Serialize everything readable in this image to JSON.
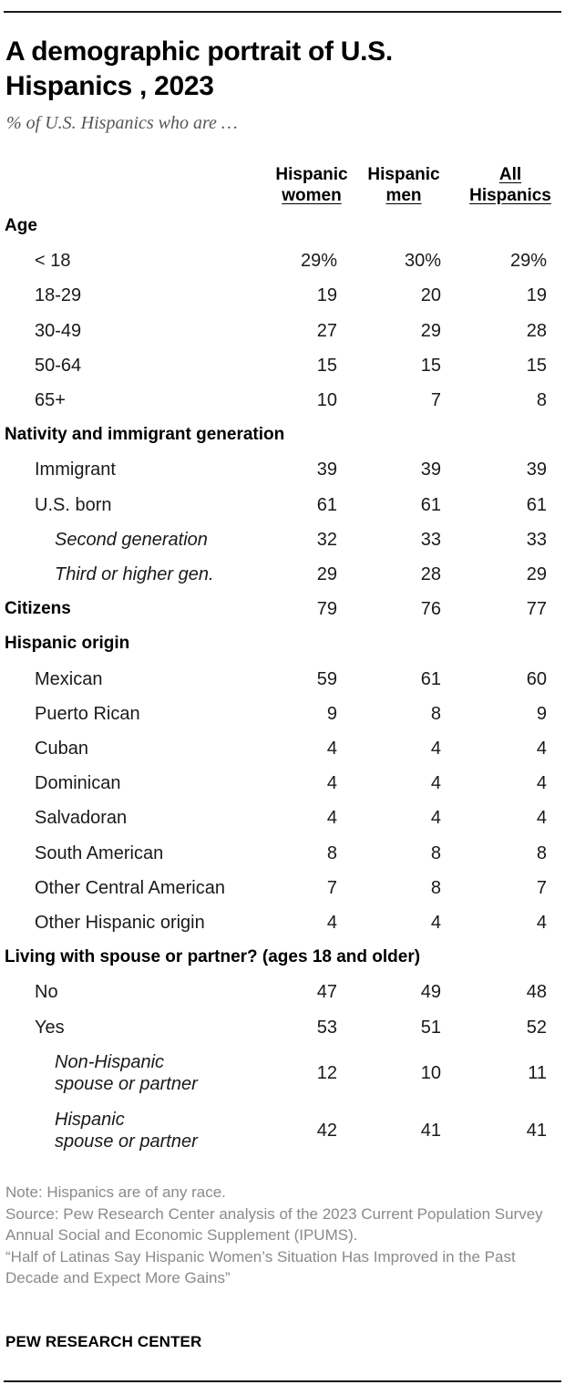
{
  "title": "A demographic portrait of  U.S.\nHispanics , 2023",
  "subtitle": "% of U.S. Hispanics who are …",
  "columns": [
    {
      "line1": "Hispanic",
      "line2": "women"
    },
    {
      "line1": "Hispanic",
      "line2": "men"
    },
    {
      "line1": "All",
      "line2": "Hispanics"
    }
  ],
  "chart_data": {
    "type": "table",
    "title": "A demographic portrait of  U.S. Hispanics , 2023",
    "subtitle": "% of U.S. Hispanics who are …",
    "columns": [
      "Hispanic women",
      "Hispanic men",
      "All Hispanics"
    ],
    "rows": [
      {
        "label": "Age",
        "kind": "section",
        "values": []
      },
      {
        "label": "< 18",
        "kind": "item",
        "values": [
          "29%",
          "30%",
          "29%"
        ]
      },
      {
        "label": "18-29",
        "kind": "item",
        "values": [
          "19",
          "20",
          "19"
        ]
      },
      {
        "label": "30-49",
        "kind": "item",
        "values": [
          "27",
          "29",
          "28"
        ]
      },
      {
        "label": "50-64",
        "kind": "item",
        "values": [
          "15",
          "15",
          "15"
        ]
      },
      {
        "label": "65+",
        "kind": "item",
        "values": [
          "10",
          "7",
          "8"
        ]
      },
      {
        "label": "Nativity and immigrant generation",
        "kind": "section",
        "values": []
      },
      {
        "label": "Immigrant",
        "kind": "item",
        "values": [
          "39",
          "39",
          "39"
        ]
      },
      {
        "label": "U.S. born",
        "kind": "item",
        "values": [
          "61",
          "61",
          "61"
        ]
      },
      {
        "label": "Second generation",
        "kind": "sub",
        "values": [
          "32",
          "33",
          "33"
        ]
      },
      {
        "label": "Third or higher gen.",
        "kind": "sub",
        "values": [
          "29",
          "28",
          "29"
        ]
      },
      {
        "label": "Citizens",
        "kind": "bold",
        "values": [
          "79",
          "76",
          "77"
        ]
      },
      {
        "label": "Hispanic origin",
        "kind": "section",
        "values": []
      },
      {
        "label": "Mexican",
        "kind": "item",
        "values": [
          "59",
          "61",
          "60"
        ]
      },
      {
        "label": "Puerto Rican",
        "kind": "item",
        "values": [
          "9",
          "8",
          "9"
        ]
      },
      {
        "label": "Cuban",
        "kind": "item",
        "values": [
          "4",
          "4",
          "4"
        ]
      },
      {
        "label": "Dominican",
        "kind": "item",
        "values": [
          "4",
          "4",
          "4"
        ]
      },
      {
        "label": "Salvadoran",
        "kind": "item",
        "values": [
          "4",
          "4",
          "4"
        ]
      },
      {
        "label": "South American",
        "kind": "item",
        "values": [
          "8",
          "8",
          "8"
        ]
      },
      {
        "label": "Other Central American",
        "kind": "item",
        "values": [
          "7",
          "8",
          "7"
        ]
      },
      {
        "label": "Other Hispanic origin",
        "kind": "item",
        "values": [
          "4",
          "4",
          "4"
        ]
      },
      {
        "label": "Living with spouse or partner? (ages 18 and older)",
        "kind": "section",
        "values": []
      },
      {
        "label": "No",
        "kind": "item",
        "values": [
          "47",
          "49",
          "48"
        ]
      },
      {
        "label": "Yes",
        "kind": "item",
        "values": [
          "53",
          "51",
          "52"
        ]
      },
      {
        "label": "Non-Hispanic\nspouse or partner",
        "kind": "sub2",
        "values": [
          "12",
          "10",
          "11"
        ]
      },
      {
        "label": "Hispanic\nspouse or partner",
        "kind": "sub2",
        "values": [
          "42",
          "41",
          "41"
        ]
      }
    ]
  },
  "notes": {
    "note": "Note: Hispanics are of any race.",
    "source": "Source: Pew Research Center analysis of the 2023 Current Population Survey Annual Social and Economic Supplement (IPUMS).",
    "report": "“Half of Latinas Say Hispanic Women’s Situation Has Improved in the Past Decade and Expect More Gains”"
  },
  "brand": "PEW RESEARCH CENTER"
}
